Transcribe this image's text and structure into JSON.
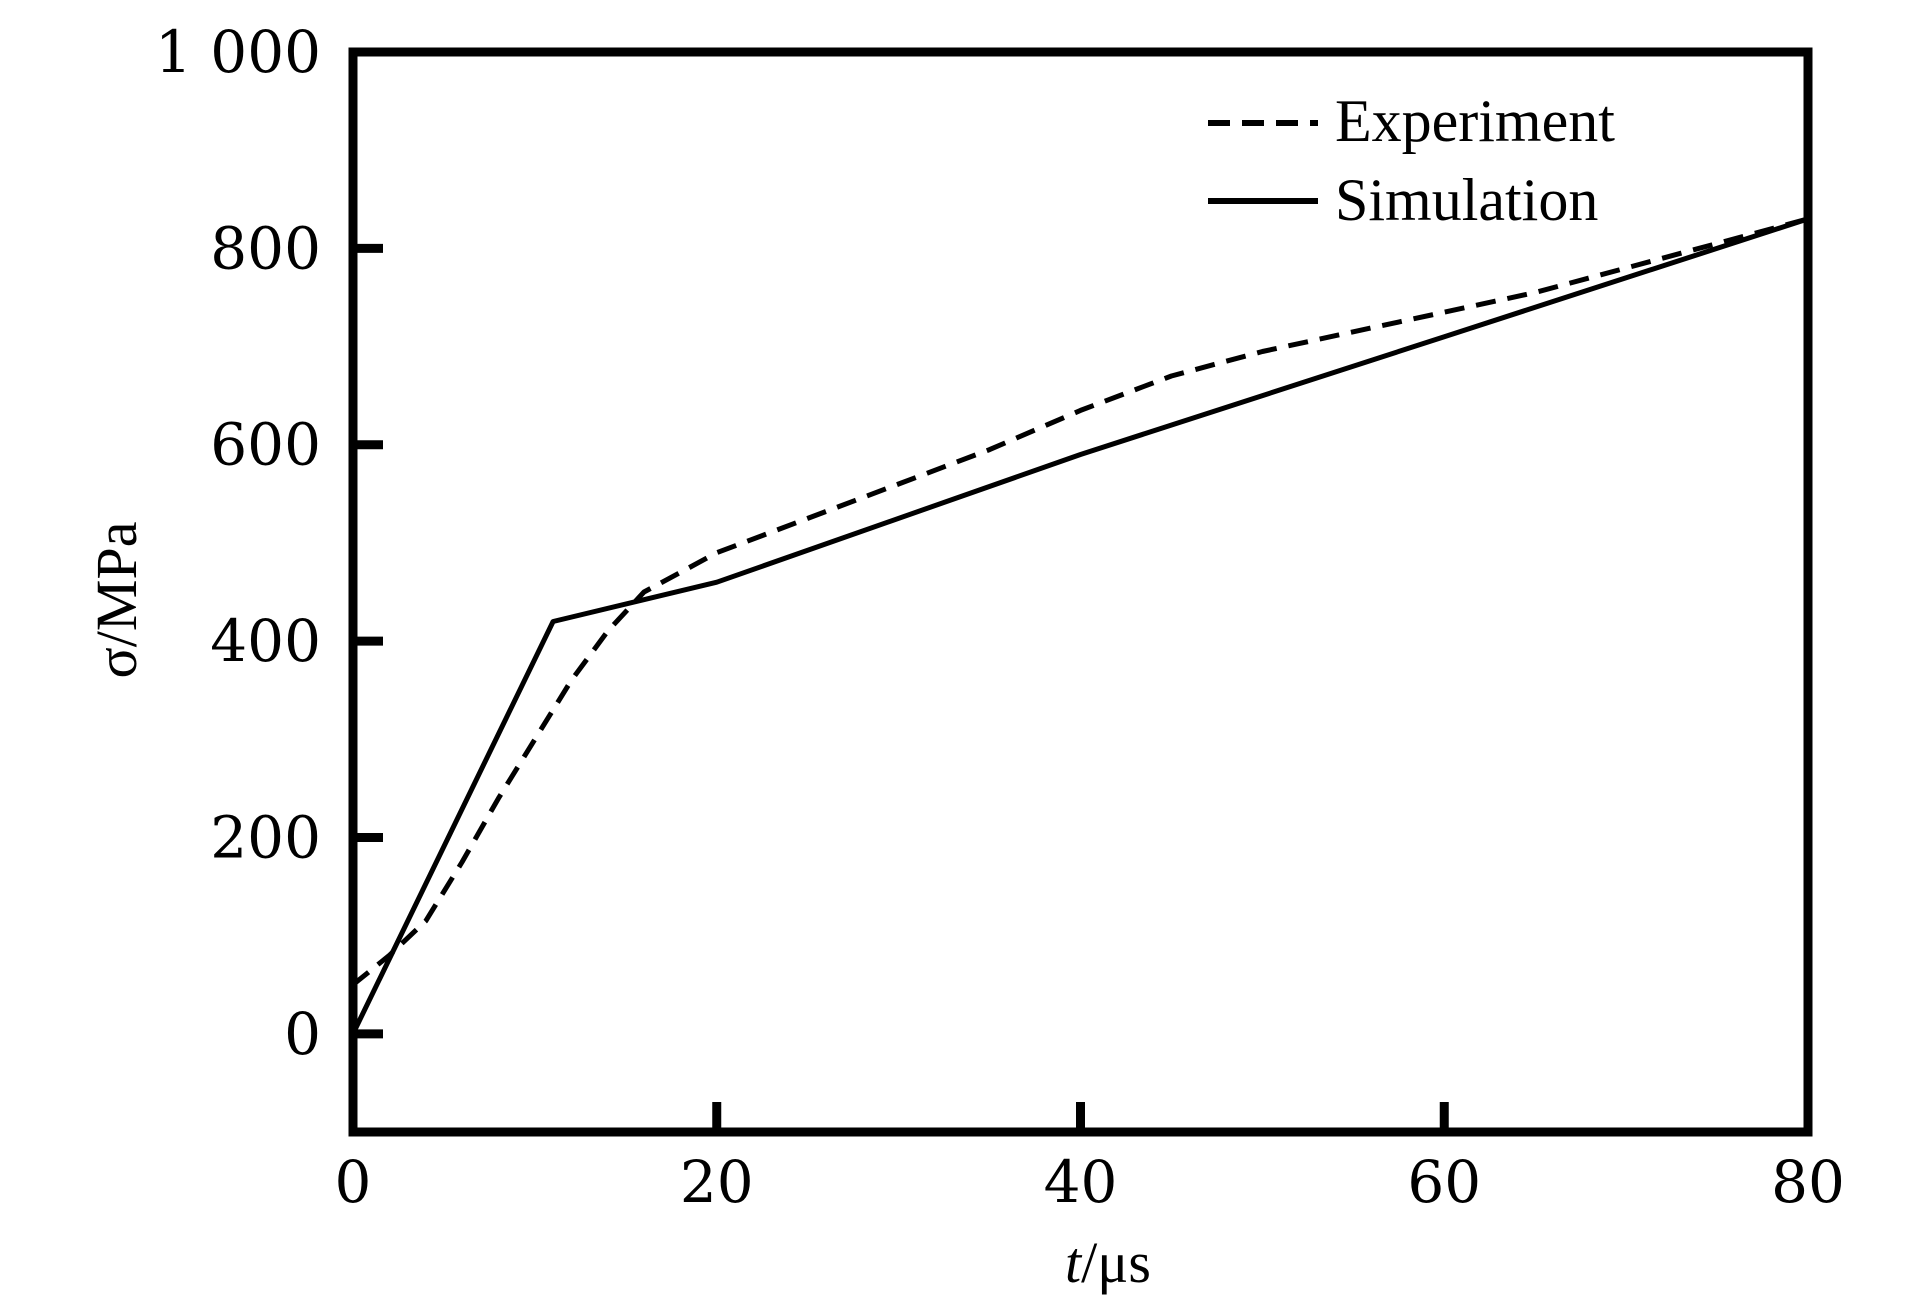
{
  "chart_data": {
    "type": "line",
    "title": "",
    "xlabel": "t/μs",
    "xlabel_var": "t",
    "xlabel_unit": "/μs",
    "ylabel": "σ/MPa",
    "xlim": [
      0,
      80
    ],
    "ylim": [
      -100,
      1000
    ],
    "xticks": [
      0,
      20,
      40,
      60,
      80
    ],
    "yticks": [
      0,
      200,
      400,
      600,
      800,
      1000
    ],
    "xtick_labels": [
      "0",
      "20",
      "40",
      "60",
      "80"
    ],
    "ytick_labels": [
      "0",
      "200",
      "400",
      "600",
      "800",
      "1 000"
    ],
    "grid": false,
    "legend_position": "top-right",
    "series": [
      {
        "name": "Experiment",
        "style": "dashed",
        "color": "#000000",
        "x": [
          0,
          2,
          4,
          6,
          8,
          10,
          12,
          14,
          16,
          18,
          20,
          25,
          30,
          35,
          40,
          45,
          50,
          55,
          60,
          65,
          70,
          75,
          80
        ],
        "y": [
          50,
          80,
          115,
          175,
          240,
          300,
          360,
          410,
          450,
          470,
          490,
          525,
          560,
          595,
          635,
          670,
          695,
          715,
          735,
          755,
          780,
          805,
          830
        ]
      },
      {
        "name": "Simulation",
        "style": "solid",
        "color": "#000000",
        "x": [
          0,
          11,
          20,
          40,
          60,
          80
        ],
        "y": [
          0,
          420,
          460,
          590,
          710,
          830
        ]
      }
    ]
  }
}
